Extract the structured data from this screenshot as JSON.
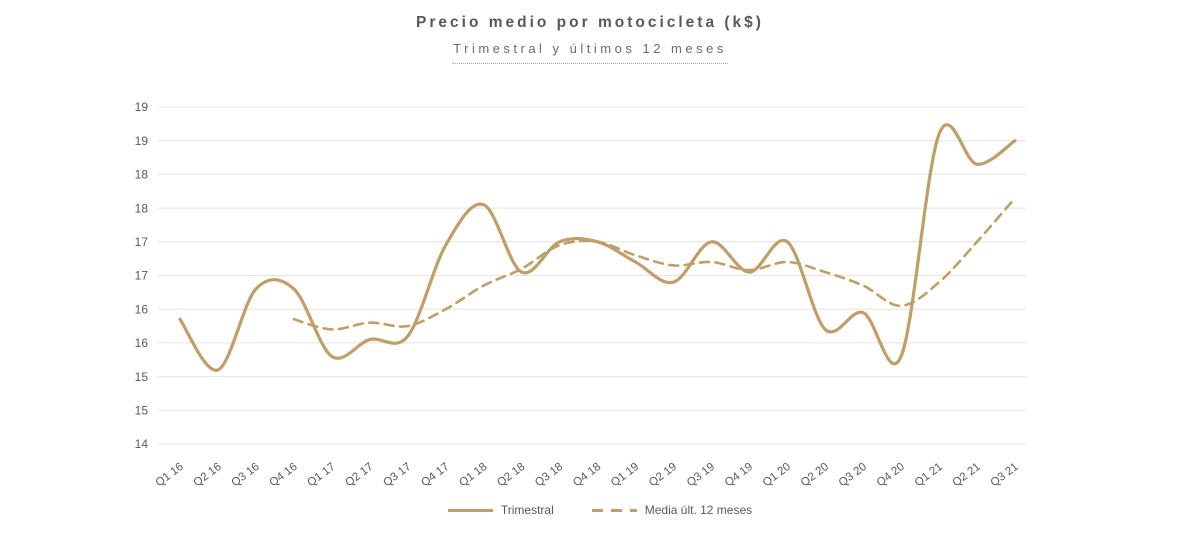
{
  "chart_data": {
    "type": "line",
    "title": "Precio medio por motocicleta (k$)",
    "subtitle": "Trimestral y últimos 12 meses",
    "categories": [
      "Q1 16",
      "Q2 16",
      "Q3 16",
      "Q4 16",
      "Q1 17",
      "Q2 17",
      "Q3 17",
      "Q4 17",
      "Q1 18",
      "Q2 18",
      "Q3 18",
      "Q4 18",
      "Q1 19",
      "Q2 19",
      "Q3 19",
      "Q4 19",
      "Q1 20",
      "Q2 20",
      "Q3 20",
      "Q4 20",
      "Q1 21",
      "Q2 21",
      "Q3 21"
    ],
    "series": [
      {
        "name": "Trimestral",
        "line_style": "solid",
        "values": [
          15.85,
          15.1,
          16.3,
          16.3,
          15.3,
          15.55,
          15.6,
          16.95,
          17.55,
          16.55,
          17.0,
          17.0,
          16.7,
          16.4,
          17.0,
          16.55,
          17.0,
          15.7,
          15.95,
          15.3,
          18.6,
          18.15,
          18.5
        ]
      },
      {
        "name": "Media últ. 12 meses",
        "line_style": "dashed",
        "values": [
          null,
          null,
          null,
          15.85,
          15.7,
          15.8,
          15.75,
          16.0,
          16.35,
          16.6,
          16.95,
          17.0,
          16.8,
          16.65,
          16.7,
          16.58,
          16.7,
          16.55,
          16.35,
          16.05,
          16.4,
          17.0,
          17.65
        ]
      }
    ],
    "ylim": [
      14,
      19
    ],
    "ytick_interval": 0.5,
    "ytick_labels_displayed": [
      "19",
      "19",
      "18",
      "18",
      "17",
      "17",
      "16",
      "16",
      "15",
      "15",
      "14"
    ],
    "xtick_rotation_deg": -37,
    "grid": "horizontal-only",
    "legend_position": "bottom-center",
    "smoothed_lines": true
  },
  "colors": {
    "line": "#C09E66",
    "gridline": "#E4E4E4",
    "axis_text": "#595959",
    "title_text": "#595959",
    "subtitle_text": "#6b6b6b",
    "subtitle_rule": "#b9a58a",
    "background": "#ffffff"
  }
}
